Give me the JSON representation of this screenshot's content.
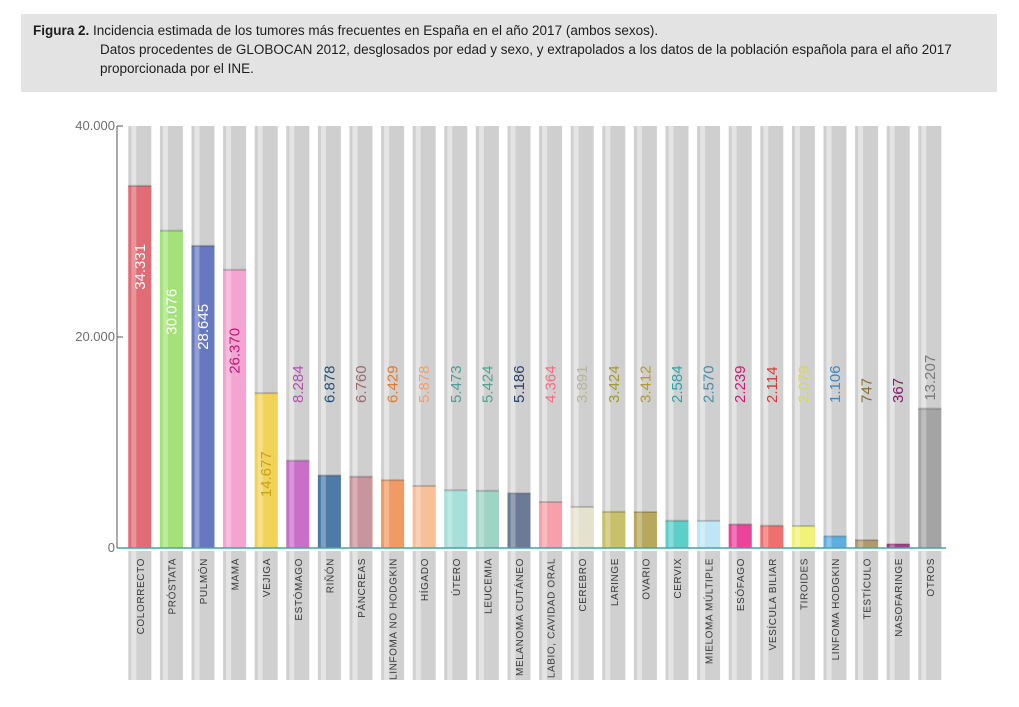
{
  "caption": {
    "label": "Figura 2.",
    "title": "Incidencia estimada de los tumores más frecuentes en España en el año 2017 (ambos sexos).",
    "description": "Datos procedentes de GLOBOCAN 2012, desglosados por edad y sexo, y extrapolados a los datos de la población española para el año 2017 proporcionada por el INE."
  },
  "chart_data": {
    "type": "bar",
    "title": "Incidencia estimada de los tumores más frecuentes en España en el año 2017 (ambos sexos)",
    "xlabel": "",
    "ylabel": "",
    "ylim": [
      0,
      40000
    ],
    "yticks": [
      {
        "value": 0,
        "label": "0"
      },
      {
        "value": 20000,
        "label": "20.000"
      },
      {
        "value": 40000,
        "label": "40.000"
      }
    ],
    "grid": false,
    "legend": "none",
    "categories": [
      "COLORRECTO",
      "PRÓSTATA",
      "PULMÓN",
      "MAMA",
      "VEJIGA",
      "ESTÓMAGO",
      "RIÑÓN",
      "PÁNCREAS",
      "LINFOMA NO HODGKIN",
      "HÍGADO",
      "ÚTERO",
      "LEUCEMIA",
      "MELANOMA CUTÁNEO",
      "LABIO, CAVIDAD ORAL",
      "CEREBRO",
      "LARINGE",
      "OVARIO",
      "CERVIX",
      "MIELOMA MÚLTIPLE",
      "ESÓFAGO",
      "VESÍCULA BILIAR",
      "TIROIDES",
      "LINFOMA HODGKIN",
      "TESTÍCULO",
      "NASOFARINGE",
      "OTROS"
    ],
    "values": [
      34331,
      30076,
      28645,
      26370,
      14677,
      8284,
      6878,
      6760,
      6429,
      5878,
      5473,
      5424,
      5186,
      4364,
      3891,
      3424,
      3412,
      2584,
      2570,
      2239,
      2114,
      2079,
      1106,
      747,
      367,
      13207
    ],
    "value_labels": [
      "34.331",
      "30.076",
      "28.645",
      "26.370",
      "14.677",
      "8.284",
      "6.878",
      "6.760",
      "6.429",
      "5.878",
      "5.473",
      "5.424",
      "5.186",
      "4.364",
      "3.891",
      "3.424",
      "3.412",
      "2.584",
      "2.570",
      "2.239",
      "2.114",
      "2.079",
      "1.106",
      "747",
      "367",
      "13.207"
    ],
    "colors": [
      "#e06c75",
      "#a3e27a",
      "#6878c0",
      "#f4a4d0",
      "#f2d35a",
      "#c86fc8",
      "#4e7ba6",
      "#c7959b",
      "#f29a64",
      "#f7c098",
      "#a6e0da",
      "#9fd3c4",
      "#6c7a98",
      "#f5a0aa",
      "#e4e2ce",
      "#c9c06a",
      "#b8a85e",
      "#5ccfc8",
      "#bfe6f6",
      "#e8459a",
      "#f07070",
      "#f1f27a",
      "#5aaee0",
      "#b09a6c",
      "#a63c8c",
      "#a4a4a4"
    ],
    "label_colors": [
      "#ffffff",
      "#ffffff",
      "#ffffff",
      "#c2187a",
      "#c8a218",
      "#b050b0",
      "#1f4f78",
      "#9b6b6f",
      "#e07a30",
      "#f0a070",
      "#4c9e96",
      "#4ea48e",
      "#2e4068",
      "#f07080",
      "#b8b498",
      "#a09a30",
      "#b89a2a",
      "#2aa4a8",
      "#4c8ca6",
      "#d01a78",
      "#d03a3a",
      "#d8d850",
      "#3a88c8",
      "#8a7030",
      "#861c6c",
      "#7a7a7a"
    ]
  }
}
